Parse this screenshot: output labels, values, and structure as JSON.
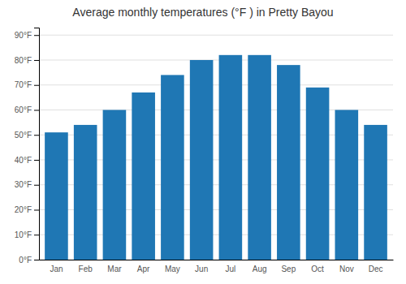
{
  "chart_data": {
    "type": "bar",
    "title": "Average monthly temperatures (°F ) in Pretty Bayou",
    "categories": [
      "Jan",
      "Feb",
      "Mar",
      "Apr",
      "May",
      "Jun",
      "Jul",
      "Aug",
      "Sep",
      "Oct",
      "Nov",
      "Dec"
    ],
    "values": [
      51,
      54,
      60,
      67,
      74,
      80,
      82,
      82,
      78,
      69,
      60,
      54
    ],
    "ylim": [
      0,
      93
    ],
    "yticks": [
      {
        "value": 0,
        "label": "0°F"
      },
      {
        "value": 10,
        "label": "10°F"
      },
      {
        "value": 20,
        "label": "20°F"
      },
      {
        "value": 30,
        "label": "30°F"
      },
      {
        "value": 40,
        "label": "40°F"
      },
      {
        "value": 50,
        "label": "50°F"
      },
      {
        "value": 60,
        "label": "60°F"
      },
      {
        "value": 70,
        "label": "70°F"
      },
      {
        "value": 80,
        "label": "80°F"
      },
      {
        "value": 90,
        "label": "90°F"
      }
    ],
    "grid": true
  }
}
